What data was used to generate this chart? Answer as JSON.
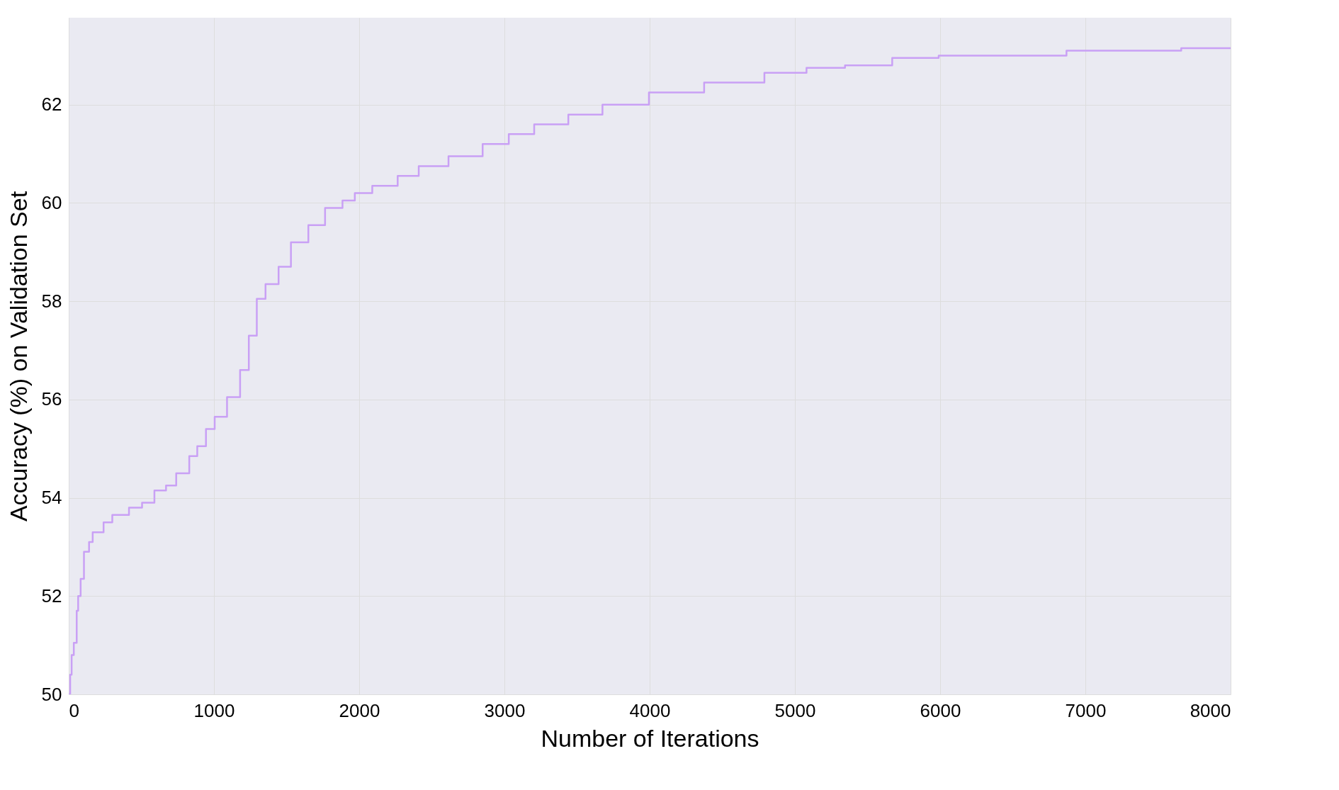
{
  "chart_data": {
    "type": "step",
    "xlabel": "Number of Iterations",
    "ylabel": "Accuracy (%) on Validation Set",
    "xlim": [
      0,
      8000
    ],
    "ylim": [
      50,
      63.77
    ],
    "xticks": [
      0,
      1000,
      2000,
      3000,
      4000,
      5000,
      6000,
      7000,
      8000
    ],
    "yticks": [
      50,
      52,
      54,
      56,
      58,
      60,
      62
    ],
    "grid": true,
    "series": [
      {
        "color": "#c9a0f5",
        "x": [
          0,
          10,
          20,
          35,
          55,
          65,
          82,
          105,
          140,
          165,
          240,
          300,
          415,
          505,
          590,
          670,
          740,
          830,
          885,
          945,
          1005,
          1090,
          1180,
          1240,
          1295,
          1355,
          1445,
          1530,
          1650,
          1765,
          1885,
          1970,
          2090,
          2265,
          2410,
          2615,
          2850,
          3030,
          3205,
          3440,
          3675,
          3995,
          4375,
          4790,
          5080,
          5345,
          5670,
          5990,
          6870,
          7660,
          8000
        ],
        "values": [
          50,
          50.4,
          50.8,
          51.05,
          51.7,
          52.0,
          52.35,
          52.9,
          53.1,
          53.3,
          53.5,
          53.65,
          53.8,
          53.9,
          54.15,
          54.25,
          54.5,
          54.85,
          55.05,
          55.4,
          55.65,
          56.05,
          56.6,
          57.3,
          58.05,
          58.35,
          58.7,
          59.2,
          59.55,
          59.9,
          60.05,
          60.2,
          60.35,
          60.55,
          60.75,
          60.95,
          61.2,
          61.4,
          61.6,
          61.8,
          62.0,
          62.25,
          62.45,
          62.65,
          62.75,
          62.8,
          62.95,
          63.0,
          63.1,
          63.15,
          63.15
        ]
      }
    ]
  }
}
